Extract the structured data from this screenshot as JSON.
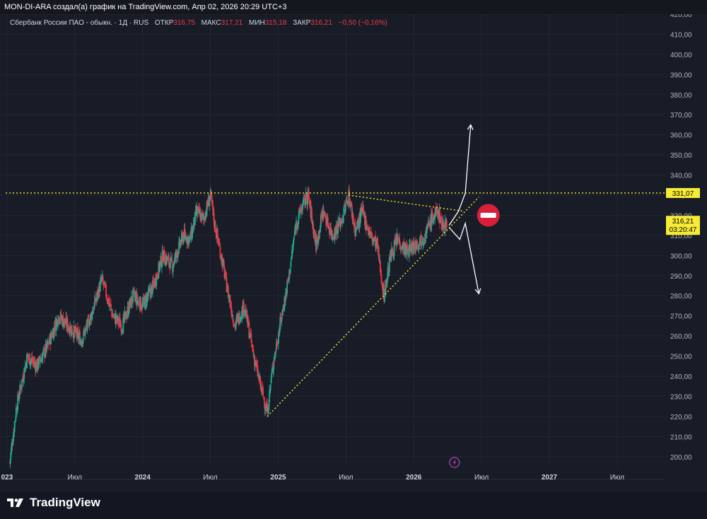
{
  "header": {
    "title": "MON-DI-ARA создал(а) график на TradingView.com, Апр 02, 2026 20:29 UTC+3"
  },
  "legend": {
    "symbol": "Сбербанк России ПАО - обыкн. · 1Д · RUS",
    "open_label": "ОТКР",
    "open_value": "316,75",
    "high_label": "МАКС",
    "high_value": "317,21",
    "low_label": "МИН",
    "low_value": "315,18",
    "close_label": "ЗАКР",
    "close_value": "316,21",
    "change": "−0,50 (−0,16%)"
  },
  "branding": {
    "logo_text": "TradingView"
  },
  "colors": {
    "up": "#22ab94",
    "down": "#f23645",
    "level": "#f7ec35",
    "background": "#181c27"
  },
  "chart_data": {
    "type": "candlestick",
    "symbol": "Сбербанк России ПАО - обыкн.",
    "interval": "1Д",
    "ylim": [
      195,
      420
    ],
    "y_ticks": [
      {
        "value": 200,
        "label": "200,00"
      },
      {
        "value": 210,
        "label": "210,00"
      },
      {
        "value": 220,
        "label": "220,00"
      },
      {
        "value": 230,
        "label": "230,00"
      },
      {
        "value": 240,
        "label": "240,00"
      },
      {
        "value": 250,
        "label": "250,00"
      },
      {
        "value": 260,
        "label": "260,00"
      },
      {
        "value": 270,
        "label": "270,00"
      },
      {
        "value": 280,
        "label": "280,00"
      },
      {
        "value": 290,
        "label": "290,00"
      },
      {
        "value": 300,
        "label": "300,00"
      },
      {
        "value": 310,
        "label": "310,00"
      },
      {
        "value": 320,
        "label": "320,00"
      },
      {
        "value": 330,
        "label": "330,00"
      },
      {
        "value": 340,
        "label": "340,00"
      },
      {
        "value": 350,
        "label": "350,00"
      },
      {
        "value": 360,
        "label": "360,00"
      },
      {
        "value": 370,
        "label": "370,00"
      },
      {
        "value": 380,
        "label": "380,00"
      },
      {
        "value": 390,
        "label": "390,00"
      },
      {
        "value": 400,
        "label": "400,00"
      },
      {
        "value": 410,
        "label": "410,00"
      },
      {
        "value": 420,
        "label": "420,00"
      }
    ],
    "x_ticks": [
      {
        "t": 2023.0,
        "label": "023",
        "bold": true
      },
      {
        "t": 2023.5,
        "label": "Июл",
        "bold": false
      },
      {
        "t": 2024.0,
        "label": "2024",
        "bold": true
      },
      {
        "t": 2024.5,
        "label": "Июл",
        "bold": false
      },
      {
        "t": 2025.0,
        "label": "2025",
        "bold": true
      },
      {
        "t": 2025.5,
        "label": "Июл",
        "bold": false
      },
      {
        "t": 2026.0,
        "label": "2026",
        "bold": true
      },
      {
        "t": 2026.5,
        "label": "Июл",
        "bold": false
      },
      {
        "t": 2027.0,
        "label": "2027",
        "bold": true
      },
      {
        "t": 2027.5,
        "label": "Июл",
        "bold": false
      }
    ],
    "xlim": [
      2022.99,
      2027.85
    ],
    "price_path": [
      [
        2023.02,
        197
      ],
      [
        2023.07,
        225
      ],
      [
        2023.15,
        250
      ],
      [
        2023.22,
        245
      ],
      [
        2023.3,
        255
      ],
      [
        2023.38,
        270
      ],
      [
        2023.45,
        265
      ],
      [
        2023.55,
        258
      ],
      [
        2023.62,
        270
      ],
      [
        2023.7,
        288
      ],
      [
        2023.78,
        270
      ],
      [
        2023.85,
        265
      ],
      [
        2023.93,
        280
      ],
      [
        2024.0,
        275
      ],
      [
        2024.08,
        285
      ],
      [
        2024.15,
        300
      ],
      [
        2024.22,
        295
      ],
      [
        2024.3,
        310
      ],
      [
        2024.35,
        308
      ],
      [
        2024.4,
        322
      ],
      [
        2024.45,
        318
      ],
      [
        2024.5,
        330
      ],
      [
        2024.53,
        316
      ],
      [
        2024.58,
        300
      ],
      [
        2024.62,
        285
      ],
      [
        2024.68,
        265
      ],
      [
        2024.75,
        275
      ],
      [
        2024.82,
        250
      ],
      [
        2024.87,
        235
      ],
      [
        2024.92,
        222
      ],
      [
        2024.96,
        245
      ],
      [
        2025.02,
        268
      ],
      [
        2025.08,
        290
      ],
      [
        2025.13,
        315
      ],
      [
        2025.18,
        325
      ],
      [
        2025.22,
        330
      ],
      [
        2025.28,
        305
      ],
      [
        2025.33,
        322
      ],
      [
        2025.4,
        310
      ],
      [
        2025.47,
        318
      ],
      [
        2025.52,
        330
      ],
      [
        2025.57,
        312
      ],
      [
        2025.62,
        322
      ],
      [
        2025.68,
        310
      ],
      [
        2025.73,
        305
      ],
      [
        2025.78,
        280
      ],
      [
        2025.83,
        300
      ],
      [
        2025.88,
        308
      ],
      [
        2025.95,
        302
      ],
      [
        2026.02,
        306
      ],
      [
        2026.08,
        310
      ],
      [
        2026.13,
        318
      ],
      [
        2026.18,
        322
      ],
      [
        2026.21,
        315
      ],
      [
        2026.245,
        316.21
      ]
    ],
    "current_price": 316.21,
    "current_price_label": "316,21",
    "countdown": "03:20:47",
    "resistance_level": 331.07,
    "resistance_label": "331,07",
    "drawings": {
      "resistance_line": {
        "from": [
          2022.99,
          331.07
        ],
        "to": [
          2027.85,
          331.07
        ]
      },
      "descending_trendline": {
        "from": [
          2025.52,
          330
        ],
        "to": [
          2026.37,
          322
        ]
      },
      "ascending_trendline": {
        "from": [
          2024.92,
          220
        ],
        "to": [
          2026.48,
          329
        ]
      },
      "arrow_up": [
        [
          2026.26,
          315
        ],
        [
          2026.33,
          322
        ],
        [
          2026.38,
          331
        ],
        [
          2026.42,
          365
        ]
      ],
      "arrow_down": [
        [
          2026.26,
          314
        ],
        [
          2026.34,
          308
        ],
        [
          2026.38,
          316
        ],
        [
          2026.48,
          281
        ]
      ],
      "no_entry_sign": {
        "t": 2026.55,
        "price": 320
      }
    }
  }
}
